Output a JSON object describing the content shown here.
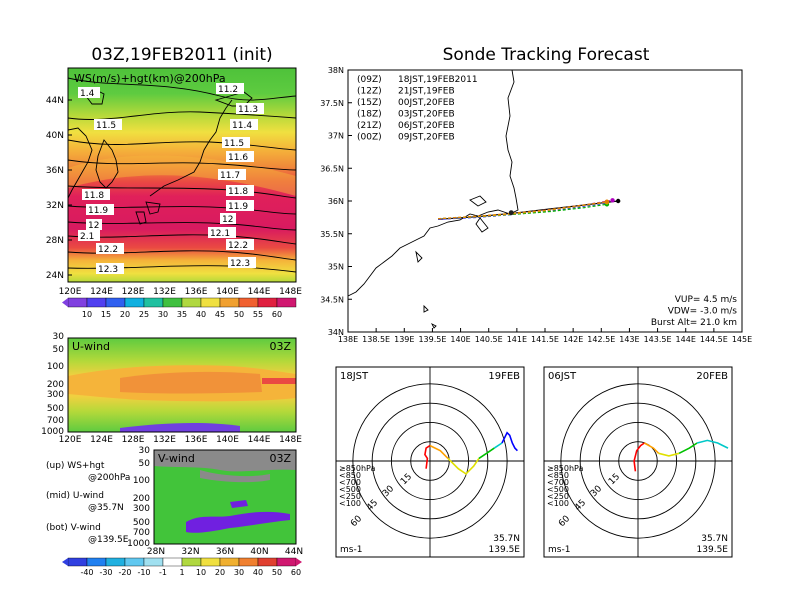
{
  "panels": {
    "upper_map": {
      "title": "03Z,19FEB2011 (init)",
      "label": "WS(m/s)+hgt(km)@200hPa",
      "lat_ticks": [
        "44N",
        "40N",
        "36N",
        "32N",
        "28N",
        "24N"
      ],
      "lon_ticks": [
        "120E",
        "124E",
        "128E",
        "132E",
        "136E",
        "140E",
        "144E",
        "148E"
      ],
      "contours": [
        {
          "text": "1.4"
        },
        {
          "text": "11.2"
        },
        {
          "text": "11.3"
        },
        {
          "text": "11.5"
        },
        {
          "text": "11.4"
        },
        {
          "text": "11.5"
        },
        {
          "text": "11.6"
        },
        {
          "text": "11.7"
        },
        {
          "text": "11.8"
        },
        {
          "text": "11.8"
        },
        {
          "text": "11.9"
        },
        {
          "text": "11.9"
        },
        {
          "text": "12"
        },
        {
          "text": "12"
        },
        {
          "text": "2.1"
        },
        {
          "text": "12.1"
        },
        {
          "text": "12.2"
        },
        {
          "text": "12.2"
        },
        {
          "text": "12.3"
        },
        {
          "text": "12.3"
        }
      ],
      "colorbar_labels": [
        "10",
        "15",
        "20",
        "25",
        "30",
        "35",
        "40",
        "45",
        "50",
        "55",
        "60"
      ]
    },
    "u_wind": {
      "label": "U-wind",
      "time": "03Z",
      "p_ticks": [
        "30",
        "50",
        "100",
        "200",
        "300",
        "500",
        "700",
        "1000"
      ],
      "x_ticks": [
        "120E",
        "124E",
        "128E",
        "132E",
        "136E",
        "140E",
        "144E",
        "148E"
      ]
    },
    "v_wind": {
      "label": "V-wind",
      "time": "03Z",
      "p_ticks": [
        "30",
        "50",
        "100",
        "200",
        "300",
        "500",
        "700",
        "1000"
      ],
      "x_ticks": [
        "28N",
        "32N",
        "36N",
        "40N",
        "44N"
      ]
    },
    "legend_text": [
      {
        "a": "(up) WS+hgt",
        "b": "@200hPa"
      },
      {
        "a": "(mid) U-wind",
        "b": "@35.7N"
      },
      {
        "a": "(bot) V-wind",
        "b": "@139.5E"
      }
    ],
    "bottom_colorbar_labels": [
      "-40",
      "-30",
      "-20",
      "-10",
      "-1",
      "1",
      "10",
      "20",
      "30",
      "40",
      "50",
      "60"
    ],
    "tracking": {
      "title": "Sonde Tracking Forecast",
      "lat_ticks": [
        "38N",
        "37.5N",
        "37N",
        "36.5N",
        "36N",
        "35.5N",
        "35N",
        "34.5N",
        "34N"
      ],
      "lon_ticks": [
        "138E",
        "138.5E",
        "139E",
        "139.5E",
        "140E",
        "140.5E",
        "141E",
        "141.5E",
        "142E",
        "142.5E",
        "143E",
        "143.5E",
        "144E",
        "144.5E",
        "145E"
      ],
      "legend": [
        {
          "z": "(09Z)",
          "t": "18JST,19FEB2011",
          "color": "#000000"
        },
        {
          "z": "(12Z)",
          "t": "21JST,19FEB",
          "color": "#b000c0"
        },
        {
          "z": "(15Z)",
          "t": "00JST,20FEB",
          "color": "#2020ff"
        },
        {
          "z": "(18Z)",
          "t": "03JST,20FEB",
          "color": "#00b000"
        },
        {
          "z": "(21Z)",
          "t": "06JST,20FEB",
          "color": "#d8b000"
        },
        {
          "z": "(00Z)",
          "t": "09JST,20FEB",
          "color": "#e08000"
        }
      ],
      "info": [
        "VUP=  4.5 m/s",
        "VDW= -3.0 m/s",
        "Burst Alt= 21.0 km"
      ]
    },
    "hodo_left": {
      "time": "18JST",
      "date": "19FEB",
      "ring_labels": [
        "15",
        "30",
        "45",
        "60"
      ],
      "levels": [
        {
          "text": "≥850hPa",
          "color": "#ff0000"
        },
        {
          "text": "<850",
          "color": "#ffa000"
        },
        {
          "text": "<700",
          "color": "#e0e000"
        },
        {
          "text": "<500",
          "color": "#00c000"
        },
        {
          "text": "<250",
          "color": "#00c8c8"
        },
        {
          "text": "<100",
          "color": "#0000ff"
        }
      ],
      "units": "ms-1",
      "loc_lat": "35.7N",
      "loc_lon": "139.5E"
    },
    "hodo_right": {
      "time": "06JST",
      "date": "20FEB",
      "ring_labels": [
        "15",
        "30",
        "45",
        "60"
      ],
      "levels": [
        {
          "text": "≥850hPa",
          "color": "#ff0000"
        },
        {
          "text": "<850",
          "color": "#ffa000"
        },
        {
          "text": "<700",
          "color": "#e0e000"
        },
        {
          "text": "<500",
          "color": "#00c000"
        },
        {
          "text": "<250",
          "color": "#00c8c8"
        },
        {
          "text": "<100",
          "color": "#0000ff"
        }
      ],
      "units": "ms-1",
      "loc_lat": "35.7N",
      "loc_lon": "139.5E"
    }
  },
  "chart_data": [
    {
      "type": "line",
      "title": "Sonde Tracking Forecast",
      "xlim": [
        138,
        145
      ],
      "ylim": [
        34,
        38
      ],
      "series": [
        {
          "name": "(09Z) 18JST,19FEB2011",
          "color": "#000000",
          "x": [
            139.6,
            140.3,
            141.0,
            141.6,
            142.3,
            142.8
          ],
          "y": [
            35.72,
            35.76,
            35.82,
            35.88,
            35.95,
            36.0
          ]
        },
        {
          "name": "(12Z) 21JST,19FEB",
          "color": "#b000c0",
          "x": [
            139.6,
            140.3,
            141.0,
            141.6,
            142.2,
            142.7
          ],
          "y": [
            35.72,
            35.76,
            35.81,
            35.87,
            35.94,
            36.01
          ]
        },
        {
          "name": "(15Z) 00JST,20FEB",
          "color": "#2020ff",
          "x": [
            139.6,
            140.3,
            141.0,
            141.6,
            142.2,
            142.6
          ],
          "y": [
            35.72,
            35.75,
            35.8,
            35.85,
            35.92,
            35.97
          ]
        },
        {
          "name": "(18Z) 03JST,20FEB",
          "color": "#00b000",
          "x": [
            139.6,
            140.3,
            141.0,
            141.6,
            142.2,
            142.6
          ],
          "y": [
            35.73,
            35.76,
            35.8,
            35.84,
            35.9,
            35.95
          ]
        },
        {
          "name": "(21Z) 06JST,20FEB",
          "color": "#d8b000",
          "x": [
            139.6,
            140.3,
            140.9,
            141.5,
            142.1,
            142.6
          ],
          "y": [
            35.73,
            35.76,
            35.8,
            35.85,
            35.92,
            35.98
          ]
        },
        {
          "name": "(00Z) 09JST,20FEB",
          "color": "#e08000",
          "x": [
            139.6,
            140.3,
            140.9,
            141.5,
            142.1,
            142.6
          ],
          "y": [
            35.73,
            35.77,
            35.81,
            35.86,
            35.93,
            35.99
          ]
        }
      ]
    },
    {
      "type": "line",
      "title": "18JST 19FEB",
      "xlim": [
        -70,
        70
      ],
      "ylim": [
        -70,
        70
      ],
      "series": [
        {
          "name": "≥850hPa",
          "color": "#ff0000",
          "x": [
            -3,
            -2,
            -4,
            -3,
            0
          ],
          "y": [
            -6,
            2,
            5,
            10,
            12
          ]
        },
        {
          "name": "<850",
          "color": "#ffa000",
          "x": [
            0,
            8,
            14
          ],
          "y": [
            12,
            8,
            2
          ]
        },
        {
          "name": "<700",
          "color": "#e0e000",
          "x": [
            14,
            22,
            28,
            34,
            38
          ],
          "y": [
            2,
            -6,
            -10,
            -4,
            2
          ]
        },
        {
          "name": "<500",
          "color": "#00c000",
          "x": [
            38,
            44,
            50
          ],
          "y": [
            2,
            6,
            10
          ]
        },
        {
          "name": "<250",
          "color": "#00c8c8",
          "x": [
            50,
            56
          ],
          "y": [
            10,
            14
          ]
        },
        {
          "name": "<100",
          "color": "#0000ff",
          "x": [
            56,
            60,
            62,
            64,
            66,
            68
          ],
          "y": [
            14,
            22,
            20,
            14,
            10,
            8
          ]
        }
      ]
    },
    {
      "type": "line",
      "title": "06JST 20FEB",
      "xlim": [
        -70,
        70
      ],
      "ylim": [
        -70,
        70
      ],
      "series": [
        {
          "name": "≥850hPa",
          "color": "#ff0000",
          "x": [
            -2,
            -3,
            -1,
            2,
            5
          ],
          "y": [
            -8,
            0,
            8,
            12,
            14
          ]
        },
        {
          "name": "<850",
          "color": "#ffa000",
          "x": [
            5,
            12,
            16
          ],
          "y": [
            14,
            10,
            6
          ]
        },
        {
          "name": "<700",
          "color": "#e0e000",
          "x": [
            16,
            24,
            32
          ],
          "y": [
            6,
            4,
            6
          ]
        },
        {
          "name": "<500",
          "color": "#00c000",
          "x": [
            32,
            40,
            46
          ],
          "y": [
            6,
            10,
            14
          ]
        },
        {
          "name": "<250",
          "color": "#00c8c8",
          "x": [
            46,
            54,
            62,
            66,
            70
          ],
          "y": [
            14,
            16,
            14,
            12,
            10
          ]
        },
        {
          "name": "<100",
          "color": "#0000ff",
          "x": [
            70,
            70
          ],
          "y": [
            10,
            10
          ]
        }
      ]
    }
  ]
}
